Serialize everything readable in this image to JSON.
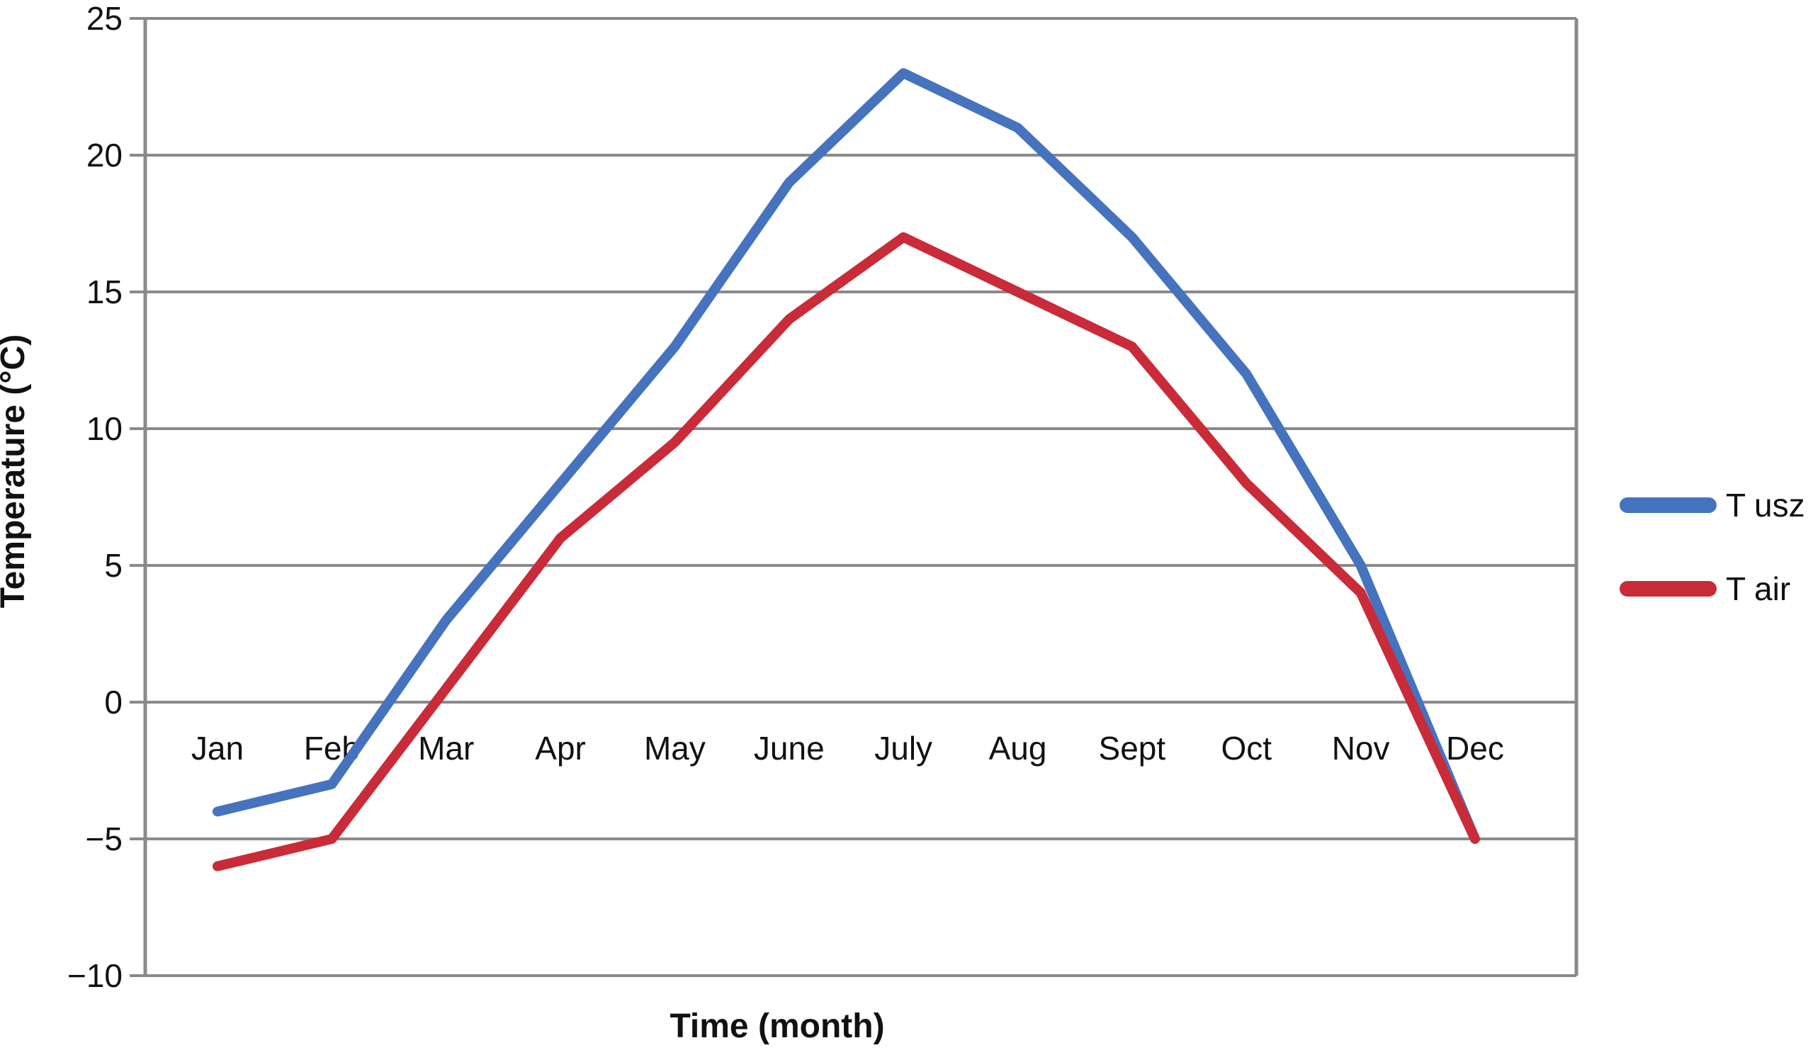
{
  "figure": {
    "y_axis_title": "Temperature (°C)",
    "x_axis_title": "Time (month)"
  },
  "chart_data": {
    "type": "line",
    "categories": [
      "Jan",
      "Feb",
      "Mar",
      "Apr",
      "May",
      "June",
      "July",
      "Aug",
      "Sept",
      "Oct",
      "Nov",
      "Dec"
    ],
    "series": [
      {
        "name": "T usz",
        "color": "#4573be",
        "values": [
          -4,
          -3,
          3,
          8,
          13,
          19,
          23,
          21,
          17,
          12,
          5,
          -5
        ]
      },
      {
        "name": "T air",
        "color": "#c92b39",
        "values": [
          -6,
          -5,
          0.5,
          6,
          9.5,
          14,
          17,
          15,
          13,
          8,
          4,
          -5
        ]
      }
    ],
    "title": "",
    "xlabel": "Time (month)",
    "ylabel": "Temperature (°C)",
    "ylim": [
      -10,
      25
    ],
    "y_ticks": [
      25,
      20,
      15,
      10,
      5,
      0,
      -5,
      -10
    ],
    "grid": true,
    "gridline_color": "#8a8a8a",
    "axis_text_color": "#111111",
    "background": "#ffffff",
    "legend_position": "right-outside",
    "x_labels_inside_below_zero_line": true
  }
}
